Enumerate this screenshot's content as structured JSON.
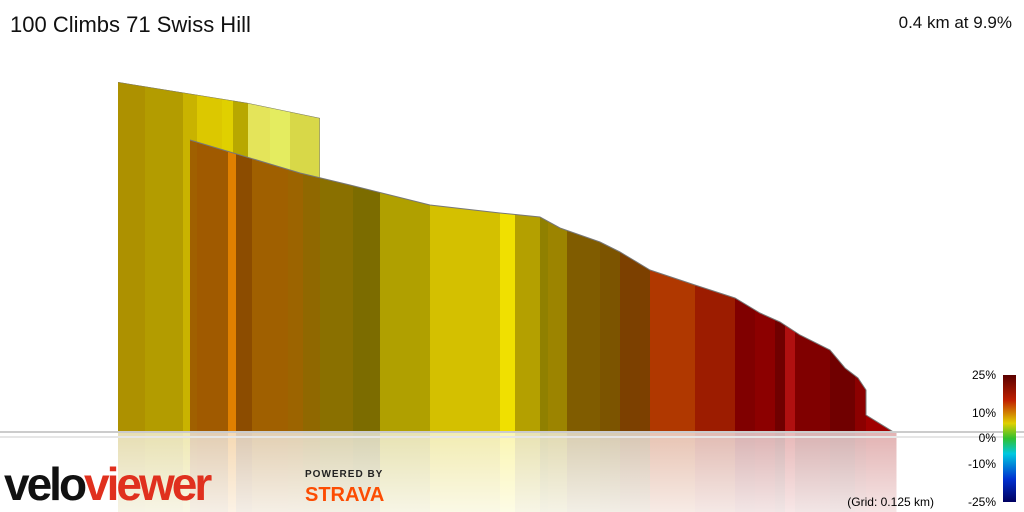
{
  "header": {
    "title": "100 Climbs 71 Swiss Hill",
    "summary": "0.4 km at 9.9%"
  },
  "legend": {
    "labels": [
      "25%",
      "10%",
      "0%",
      "-10%",
      "-25%"
    ],
    "grid_note": "(Grid: 0.125 km)"
  },
  "branding": {
    "logo_part1": "velo",
    "logo_part2": "viewer",
    "powered_by": "POWERED BY",
    "partner": "STRAVA"
  }
}
